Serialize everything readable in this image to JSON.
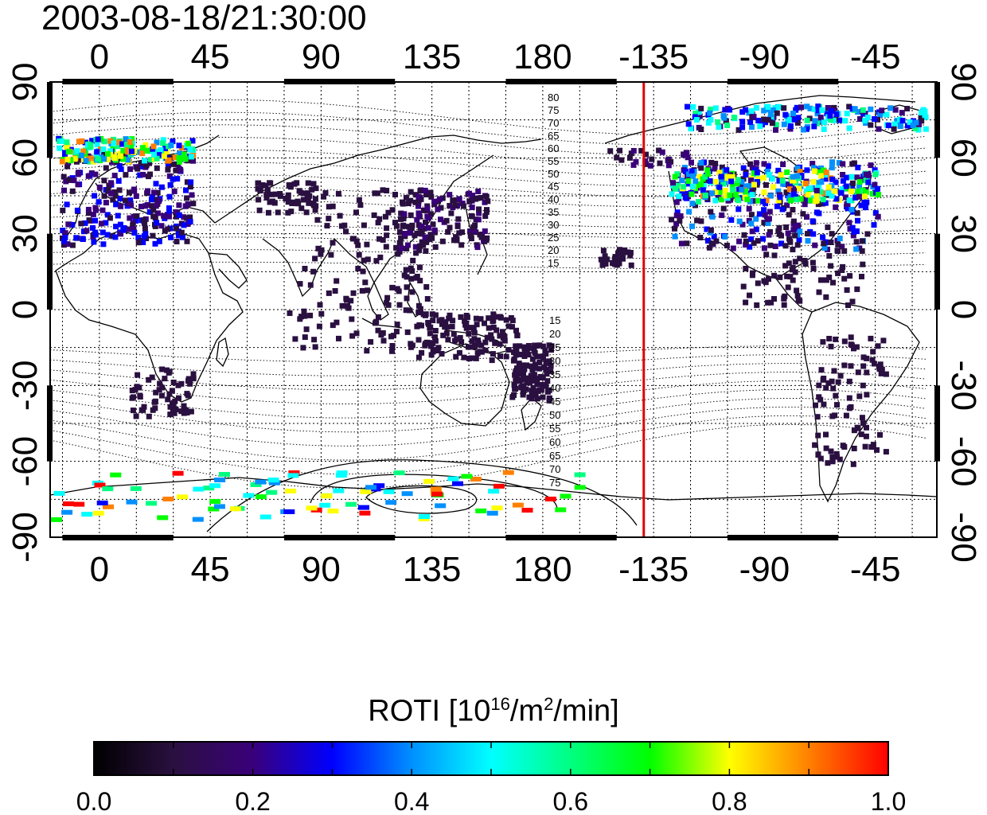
{
  "timestamp": "2003-08-18/21:30:00",
  "map": {
    "top_axis_labels": [
      "0",
      "45",
      "90",
      "135",
      "180",
      "-135",
      "-90",
      "-45"
    ],
    "bottom_axis_labels": [
      "0",
      "45",
      "90",
      "135",
      "180",
      "-135",
      "-90",
      "-45"
    ],
    "left_axis_labels": [
      "90",
      "60",
      "30",
      "0",
      "-30",
      "-60",
      "-90"
    ],
    "right_axis_labels": [
      "90",
      "60",
      "30",
      "0",
      "-30",
      "-60",
      "-90"
    ],
    "lon_range": [
      -20,
      340
    ],
    "lat_range": [
      -90,
      90
    ],
    "red_line_longitude": -139,
    "red_line_color": "#e00000",
    "north_contour_labels": [
      "80",
      "75",
      "70",
      "65",
      "60",
      "55",
      "50",
      "45",
      "40",
      "35",
      "30",
      "25",
      "20",
      "15"
    ],
    "south_contour_labels": [
      "15",
      "20",
      "25",
      "30",
      "35",
      "40",
      "45",
      "50",
      "55",
      "60",
      "65",
      "70",
      "75"
    ]
  },
  "colorbar": {
    "title_main": "ROTI  [10",
    "title_sup1": "16",
    "title_mid": "/m",
    "title_sup2": "2",
    "title_end": "/min]",
    "tick_labels": [
      "0.0",
      "0.2",
      "0.4",
      "0.6",
      "0.8",
      "1.0"
    ],
    "range": [
      0.0,
      1.0
    ],
    "colors": [
      "#000000",
      "#2a1040",
      "#3a007a",
      "#0000ff",
      "#0090ff",
      "#00ffff",
      "#00ff80",
      "#00ff00",
      "#ffff00",
      "#ff8000",
      "#ff0000"
    ]
  }
}
